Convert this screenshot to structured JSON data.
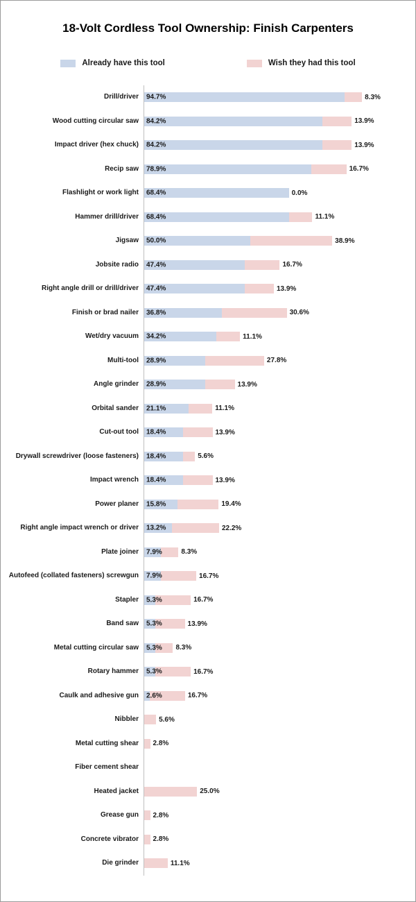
{
  "page": {
    "title": "18-Volt Cordless Tool Ownership: Finish Carpenters"
  },
  "legend": [
    {
      "label": "Already have this tool",
      "color": "#c9d6e9"
    },
    {
      "label": "Wish they had this tool",
      "color": "#f2d3d2"
    }
  ],
  "chart_data": {
    "type": "bar",
    "orientation": "horizontal-stacked",
    "title": "18-Volt Cordless Tool Ownership: Finish Carpenters",
    "xlabel": "",
    "ylabel": "",
    "value_suffix": "%",
    "xlim": [
      0,
      105
    ],
    "grid": false,
    "legend_position": "top",
    "categories": [
      "Drill/driver",
      "Wood cutting circular saw",
      "Impact driver (hex chuck)",
      "Recip saw",
      "Flashlight or work light",
      "Hammer drill/driver",
      "Jigsaw",
      "Jobsite radio",
      "Right angle drill or drill/driver",
      "Finish or brad nailer",
      "Wet/dry vacuum",
      "Multi-tool",
      "Angle grinder",
      "Orbital sander",
      "Cut-out tool",
      "Drywall screwdriver (loose fasteners)",
      "Impact wrench",
      "Power planer",
      "Right angle impact wrench or driver",
      "Plate joiner",
      "Autofeed (collated fasteners) screwgun",
      "Stapler",
      "Band saw",
      "Metal cutting circular saw",
      "Rotary hammer",
      "Caulk and adhesive gun",
      "Nibbler",
      "Metal cutting shear",
      "Fiber cement shear",
      "Heated jacket",
      "Grease gun",
      "Concrete vibrator",
      "Die grinder"
    ],
    "series": [
      {
        "name": "Already have this tool",
        "color": "#c9d6e9",
        "values": [
          94.7,
          84.2,
          84.2,
          78.9,
          68.4,
          68.4,
          50.0,
          47.4,
          47.4,
          36.8,
          34.2,
          28.9,
          28.9,
          21.1,
          18.4,
          18.4,
          18.4,
          15.8,
          13.2,
          7.9,
          7.9,
          5.3,
          5.3,
          5.3,
          5.3,
          2.6,
          0.0,
          0.0,
          0.0,
          0.0,
          0.0,
          0.0,
          0.0
        ]
      },
      {
        "name": "Wish they had this tool",
        "color": "#f2d3d2",
        "values": [
          8.3,
          13.9,
          13.9,
          16.7,
          0.0,
          11.1,
          38.9,
          16.7,
          13.9,
          30.6,
          11.1,
          27.8,
          13.9,
          11.1,
          13.9,
          5.6,
          13.9,
          19.4,
          22.2,
          8.3,
          16.7,
          16.7,
          13.9,
          8.3,
          16.7,
          16.7,
          5.6,
          2.8,
          0.0,
          25.0,
          2.8,
          2.8,
          11.1
        ]
      }
    ]
  }
}
